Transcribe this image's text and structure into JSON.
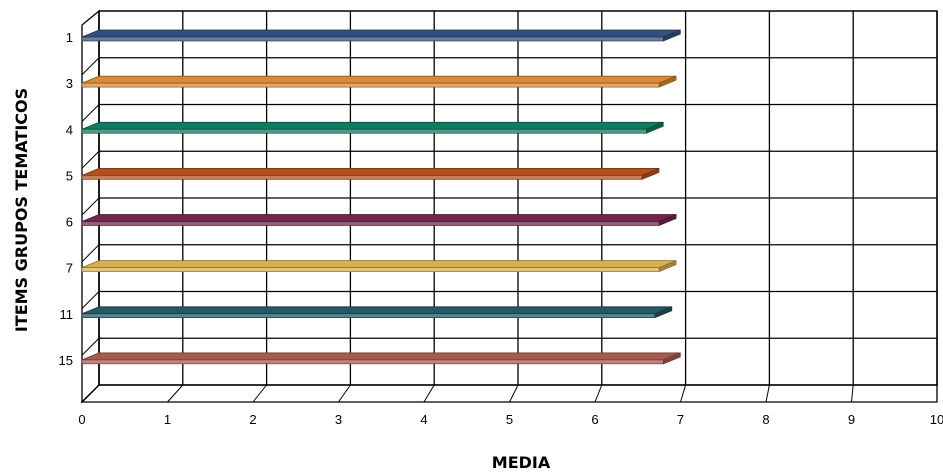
{
  "chart_data": {
    "type": "bar",
    "orientation": "horizontal",
    "style": "3d",
    "xlabel": "MEDIA",
    "ylabel": "ITEMS GRUPOS TEMATICOS",
    "xlim": [
      0,
      10
    ],
    "x_ticks": [
      "0",
      "1",
      "2",
      "3",
      "4",
      "5",
      "6",
      "7",
      "8",
      "9",
      "10"
    ],
    "grid": true,
    "categories": [
      "1",
      "3",
      "4",
      "5",
      "6",
      "7",
      "11",
      "15"
    ],
    "values": [
      6.8,
      6.75,
      6.6,
      6.55,
      6.75,
      6.75,
      6.7,
      6.8
    ],
    "colors": [
      "#34507f",
      "#d98a34",
      "#127a5f",
      "#b4501f",
      "#74254a",
      "#d8b14e",
      "#245865",
      "#a55a4e"
    ]
  }
}
